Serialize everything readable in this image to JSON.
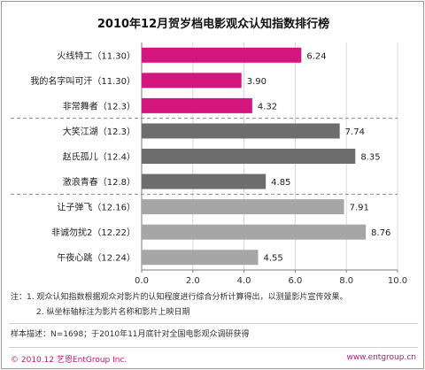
{
  "page": {
    "title": "2010年12月贺岁档电影观众认知指数排行榜",
    "notes": [
      "注：1. 观众认知指数根据观众对影片的认知程度进行综合分析计算得出，以测量影片宣传效果。",
      "2. 纵坐标轴标注为影片名称和影片上映日期"
    ],
    "sample": "样本描述：N=1698；于2010年11月底针对全国电影观众调研获得",
    "footer_left": "© 2010.12  艺恩EntGroup Inc.",
    "footer_right": "www.entgroup.cn"
  },
  "chart_data": {
    "type": "bar",
    "orientation": "horizontal",
    "categories": [
      "火线特工（11.30）",
      "我的名字叫可汗（11.30）",
      "非常舞者（12.3）",
      "大笑江湖（12.3）",
      "赵氏孤儿（12.4）",
      "激浪青春（12.8）",
      "让子弹飞（12.16）",
      "非诚勿扰2（12.22）",
      "午夜心跳（12.24）"
    ],
    "values": [
      6.24,
      3.9,
      4.32,
      7.74,
      8.35,
      4.85,
      7.91,
      8.76,
      4.55
    ],
    "value_labels": [
      "6.24",
      "3.90",
      "4.32",
      "7.74",
      "8.35",
      "4.85",
      "7.91",
      "8.76",
      "4.55"
    ],
    "groups": [
      0,
      0,
      0,
      1,
      1,
      1,
      2,
      2,
      2
    ],
    "group_colors": [
      "#d4157e",
      "#6d6d6d",
      "#a6a6a6"
    ],
    "xlim": [
      0,
      10
    ],
    "xticks": [
      "0.0",
      "2.0",
      "4.0",
      "6.0",
      "8.0",
      "10.0"
    ],
    "xtick_values": [
      0,
      2,
      4,
      6,
      8,
      10
    ],
    "grid": true,
    "group_separators": "dashed"
  }
}
